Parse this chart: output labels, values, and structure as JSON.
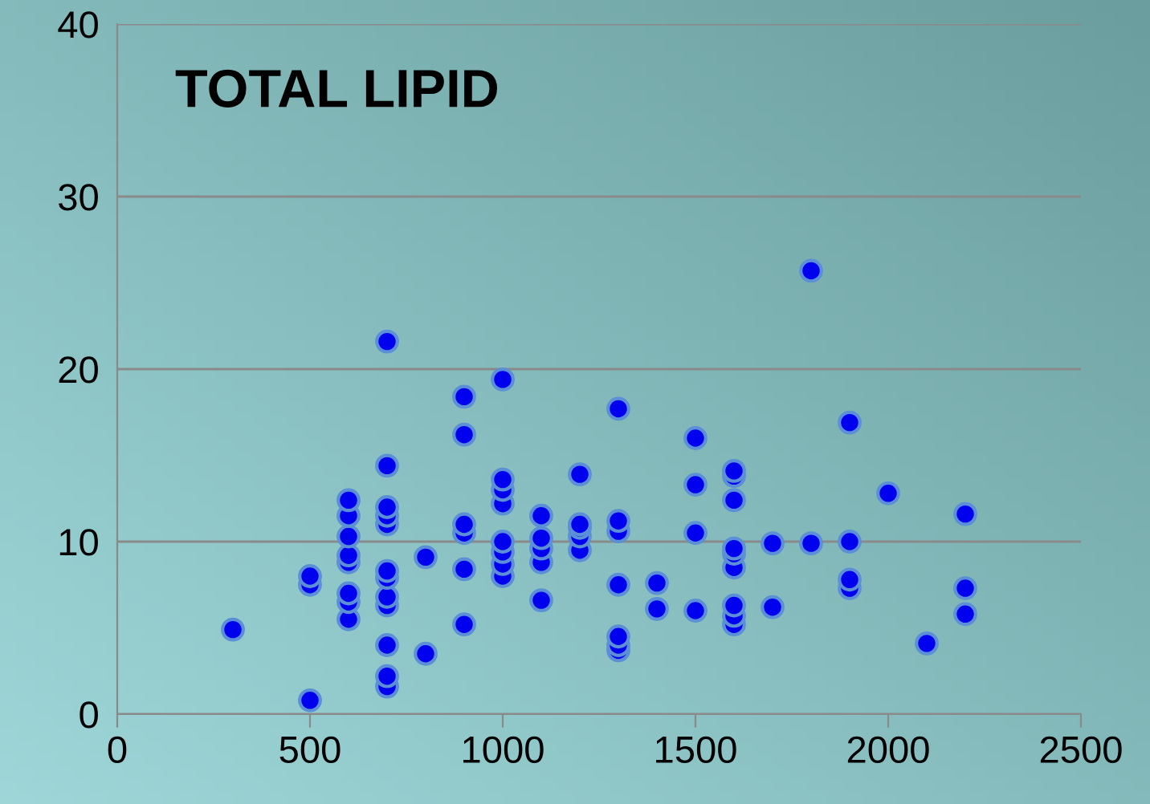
{
  "chart_data": {
    "type": "scatter",
    "title": "TOTAL LIPID",
    "series": [
      {
        "color": "#0000ee",
        "x": [
          300,
          500,
          500,
          500,
          600,
          600,
          600,
          600,
          600,
          600,
          600,
          600,
          700,
          700,
          700,
          700,
          700,
          700,
          700,
          700,
          700,
          700,
          700,
          700,
          800,
          800,
          900,
          900,
          900,
          900,
          900,
          900,
          1000,
          1000,
          1000,
          1000,
          1000,
          1000,
          1000,
          1000,
          1100,
          1100,
          1100,
          1100,
          1100,
          1200,
          1200,
          1200,
          1200,
          1200,
          1300,
          1300,
          1300,
          1300,
          1300,
          1300,
          1300,
          1400,
          1400,
          1500,
          1500,
          1500,
          1500,
          1600,
          1600,
          1600,
          1600,
          1600,
          1600,
          1600,
          1600,
          1600,
          1700,
          1700,
          1800,
          1800,
          1900,
          1900,
          1900,
          1900,
          2000,
          2100,
          2200,
          2200,
          2200
        ],
        "values": [
          4.9,
          0.8,
          7.5,
          8.0,
          5.5,
          6.5,
          7.0,
          8.8,
          9.2,
          10.3,
          11.5,
          12.4,
          1.6,
          2.2,
          4.0,
          6.3,
          6.8,
          7.9,
          8.3,
          11.0,
          11.5,
          12.0,
          14.4,
          21.6,
          3.5,
          9.1,
          5.2,
          8.4,
          10.5,
          11.0,
          16.2,
          18.4,
          8.0,
          8.7,
          9.4,
          10.0,
          12.2,
          13.0,
          13.6,
          19.4,
          6.6,
          8.8,
          9.6,
          10.2,
          11.5,
          9.5,
          10.3,
          10.8,
          11.0,
          13.9,
          3.7,
          4.0,
          4.5,
          7.5,
          10.6,
          11.2,
          17.7,
          6.1,
          7.6,
          6.0,
          10.5,
          13.3,
          16.0,
          5.2,
          5.7,
          6.3,
          8.5,
          9.3,
          9.6,
          12.4,
          13.8,
          14.1,
          6.2,
          9.9,
          9.9,
          25.7,
          7.3,
          7.8,
          10.0,
          16.9,
          12.8,
          4.1,
          5.8,
          7.3,
          11.6
        ]
      }
    ],
    "xlim": [
      0,
      2500
    ],
    "xticks": [
      0,
      500,
      1000,
      1500,
      2000,
      2500
    ],
    "ylim": [
      0,
      40
    ],
    "yticks": [
      0,
      10,
      20,
      30,
      40
    ],
    "grid": "y",
    "marker": "circle",
    "legend": false
  }
}
